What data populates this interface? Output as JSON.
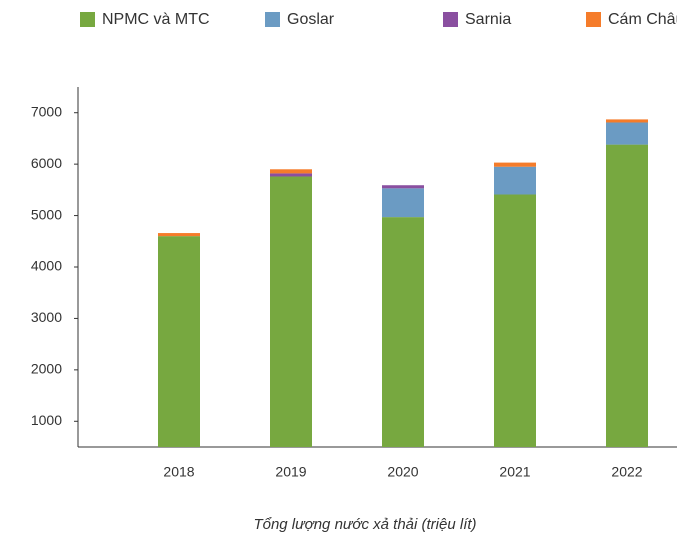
{
  "chart_data": {
    "type": "stacked_bar",
    "categories": [
      "2018",
      "2019",
      "2020",
      "2021",
      "2022"
    ],
    "series": [
      {
        "name": "NPMC và MTC",
        "color": "#77a840",
        "values": [
          4600,
          5760,
          4970,
          5410,
          6380
        ]
      },
      {
        "name": "Goslar",
        "color": "#6b9bc3",
        "values": [
          0,
          0,
          560,
          540,
          430
        ]
      },
      {
        "name": "Sarnia",
        "color": "#8a4fa0",
        "values": [
          0,
          60,
          60,
          0,
          0
        ]
      },
      {
        "name": "Cám Châu",
        "color": "#f57c2a",
        "values": [
          60,
          80,
          0,
          80,
          60
        ]
      }
    ],
    "ylim": [
      500,
      7500
    ],
    "yticks": [
      1000,
      2000,
      3000,
      4000,
      5000,
      6000,
      7000
    ],
    "caption": "Tổng lượng nước xả thải (triệu lít)"
  }
}
